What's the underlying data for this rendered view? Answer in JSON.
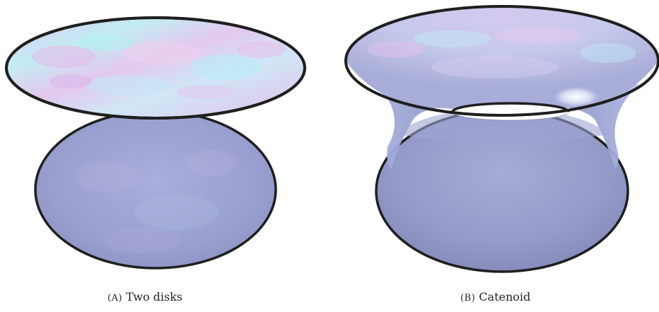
{
  "panels": [
    {
      "label": "(A)",
      "title": "Two disks"
    },
    {
      "label": "(B)",
      "title": "Catenoid"
    }
  ],
  "colors": {
    "boundary": "#1f1f1f",
    "surface_top": "#c8ccf0",
    "surface_bottom": "#8f96c6",
    "sheen_pink": "#e9c2ec",
    "sheen_cyan": "#bfeff2"
  }
}
